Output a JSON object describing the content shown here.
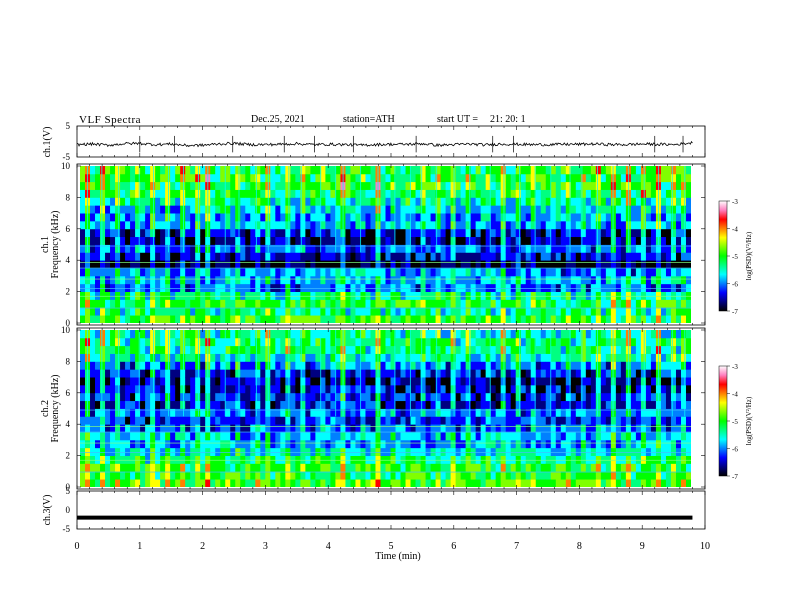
{
  "header": {
    "title": "VLF  Spectra",
    "date": "Dec.25, 2021",
    "station": "station=ATH",
    "start_label": "start  UT  =",
    "start_time": "21: 20: 1"
  },
  "colors": {
    "spectrogram_scale": [
      "#000000",
      "#000080",
      "#0000ff",
      "#0080ff",
      "#00ffff",
      "#00ff80",
      "#00ff00",
      "#80ff00",
      "#ffff00",
      "#ff8000",
      "#ff0000",
      "#ff80c0",
      "#ffffff"
    ],
    "trace": "#000000"
  },
  "chart_data": [
    {
      "type": "line",
      "name": "ch1-waveform",
      "ylabel": "ch.1(V)",
      "ylim": [
        -5,
        5
      ],
      "yticks": [
        "5",
        "-5"
      ],
      "x_range_min": [
        0,
        10
      ],
      "note_values": "approximate trace level in volts sampled every 0.25 min",
      "x": [
        0,
        0.25,
        0.5,
        0.75,
        1,
        1.25,
        1.5,
        1.75,
        2,
        2.25,
        2.5,
        2.75,
        3,
        3.25,
        3.5,
        3.75,
        4,
        4.25,
        4.5,
        4.75,
        5,
        5.25,
        5.5,
        5.75,
        6,
        6.25,
        6.5,
        6.75,
        7,
        7.25,
        7.5,
        7.75,
        8,
        8.25,
        8.5,
        8.75,
        9,
        9.25,
        9.5,
        9.75
      ],
      "y": [
        -1.0,
        -0.8,
        -1.2,
        -0.7,
        -0.6,
        -1.0,
        -0.8,
        -1.3,
        -1.2,
        -0.8,
        -0.6,
        -1.0,
        -1.0,
        -0.9,
        -0.7,
        -1.0,
        -0.9,
        -1.0,
        -1.2,
        -1.0,
        -0.9,
        -0.9,
        -0.7,
        -1.2,
        -1.0,
        -0.8,
        -1.1,
        -0.8,
        -0.9,
        -1.0,
        -1.0,
        -0.9,
        -0.9,
        -0.8,
        -1.0,
        -1.0,
        -0.8,
        -0.9,
        -1.0,
        -0.5
      ]
    },
    {
      "type": "heatmap",
      "name": "ch1-spectrogram",
      "ylabel": "ch.1\nFrequency (kHz)",
      "ylim": [
        0,
        10
      ],
      "yticks": [
        "0",
        "2",
        "4",
        "6",
        "8",
        "10"
      ],
      "xlim": [
        0,
        9.8
      ],
      "colorbar_label": "log(PSD)(V²/Hz)",
      "colorbar_range": [
        -7,
        -3
      ],
      "colorbar_ticks": [
        "-3",
        "-4",
        "-5",
        "-6",
        "-7"
      ],
      "freq_khz": [
        0.5,
        1.0,
        1.5,
        2.0,
        2.5,
        3.0,
        3.5,
        4.0,
        4.5,
        5.0,
        5.5,
        6.0,
        6.5,
        7.0,
        7.5,
        8.0,
        8.5,
        9.0,
        9.5,
        10.0
      ],
      "mean_log_psd": [
        -5.0,
        -5.3,
        -5.0,
        -5.3,
        -6.0,
        -5.8,
        -5.9,
        -6.9,
        -6.4,
        -6.0,
        -6.6,
        -6.4,
        -5.8,
        -5.8,
        -5.6,
        -5.4,
        -5.1,
        -5.0,
        -5.0,
        -5.0
      ],
      "sferic_times_min": [
        0.12,
        0.35,
        0.62,
        0.95,
        1.18,
        1.42,
        1.66,
        1.9,
        2.05,
        2.33,
        2.55,
        2.83,
        3.02,
        3.35,
        3.55,
        3.86,
        4.1,
        4.22,
        4.5,
        4.78,
        5.05,
        5.3,
        5.48,
        5.72,
        6.0,
        6.25,
        6.58,
        6.8,
        7.05,
        7.3,
        7.55,
        7.86,
        8.05,
        8.3,
        8.55,
        8.8,
        9.05,
        9.28,
        9.5,
        9.7
      ]
    },
    {
      "type": "heatmap",
      "name": "ch2-spectrogram",
      "ylabel": "ch.2\nFrequency (kHz)",
      "ylim": [
        0,
        10
      ],
      "yticks": [
        "0",
        "2",
        "4",
        "6",
        "8",
        "10"
      ],
      "xlim": [
        0,
        9.8
      ],
      "colorbar_label": "log(PSD)(V²/Hz)",
      "colorbar_range": [
        -7,
        -3
      ],
      "colorbar_ticks": [
        "-3",
        "-4",
        "-5",
        "-6",
        "-7"
      ],
      "freq_khz": [
        0.5,
        1.0,
        1.5,
        2.0,
        2.5,
        3.0,
        3.5,
        4.0,
        4.5,
        5.0,
        5.5,
        6.0,
        6.5,
        7.0,
        7.5,
        8.0,
        8.5,
        9.0,
        9.5,
        10.0
      ],
      "mean_log_psd": [
        -4.8,
        -5.0,
        -4.9,
        -5.2,
        -5.5,
        -5.8,
        -5.7,
        -6.0,
        -6.2,
        -5.9,
        -6.4,
        -6.3,
        -6.4,
        -6.6,
        -6.3,
        -5.9,
        -5.5,
        -5.3,
        -5.2,
        -5.4
      ],
      "sferic_times_min": [
        0.12,
        0.35,
        0.62,
        0.95,
        1.18,
        1.42,
        1.66,
        1.9,
        2.05,
        2.33,
        2.55,
        2.83,
        3.02,
        3.35,
        3.55,
        3.86,
        4.1,
        4.22,
        4.5,
        4.78,
        5.05,
        5.3,
        5.48,
        5.72,
        6.0,
        6.25,
        6.58,
        6.8,
        7.05,
        7.3,
        7.55,
        7.86,
        8.05,
        8.3,
        8.55,
        8.8,
        9.05,
        9.28,
        9.5,
        9.7
      ]
    },
    {
      "type": "line",
      "name": "ch3-waveform",
      "ylabel": "ch.3(V)",
      "ylim": [
        -5,
        5
      ],
      "yticks": [
        "5",
        "0",
        "-5"
      ],
      "x": [
        0,
        9.8
      ],
      "y": [
        -2.0,
        -2.0
      ]
    }
  ],
  "xaxis": {
    "label": "Time  (min)",
    "ticks": [
      "0",
      "1",
      "2",
      "3",
      "4",
      "5",
      "6",
      "7",
      "8",
      "9",
      "10"
    ]
  }
}
